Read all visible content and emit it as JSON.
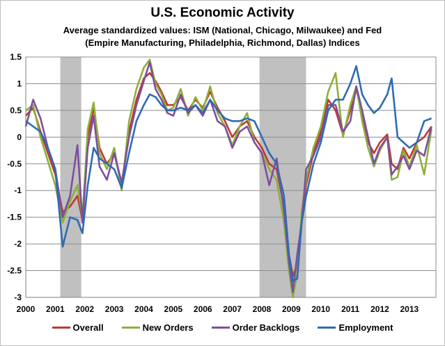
{
  "chart_data": {
    "type": "line",
    "title": "U.S. Economic Activity",
    "subtitle_line1": "Average standardized values: ISM (National, Chicago, Milwaukee) and Fed",
    "subtitle_line2": "(Empire Manufacturing, Philadelphia, Richmond, Dallas) Indices",
    "xlabel": "",
    "ylabel": "",
    "xlim": [
      2000,
      2013.9
    ],
    "ylim": [
      -3,
      1.5
    ],
    "x_ticks": [
      2000,
      2001,
      2002,
      2003,
      2004,
      2005,
      2006,
      2007,
      2008,
      2009,
      2010,
      2011,
      2012,
      2013
    ],
    "x_tick_labels": [
      "2000",
      "2001",
      "2002",
      "2003",
      "2004",
      "2005",
      "2006",
      "2007",
      "2008",
      "2009",
      "2010",
      "2011",
      "2012",
      "2013"
    ],
    "y_ticks": [
      1.5,
      1,
      0.5,
      0,
      -0.5,
      -1,
      -1.5,
      -2,
      -2.5,
      -3
    ],
    "y_tick_labels": [
      "1.5",
      "1",
      "0.5",
      "0",
      "-0.5",
      "-1",
      "-1.5",
      "-2",
      "-2.5",
      "-3"
    ],
    "grid": true,
    "legend_position": "bottom",
    "recessions": [
      [
        2001.17,
        2001.88
      ],
      [
        2007.92,
        2009.5
      ]
    ],
    "series": [
      {
        "name": "Overall",
        "color": "#c0392b",
        "x": [
          2000,
          2000.25,
          2000.5,
          2000.75,
          2001,
          2001.25,
          2001.5,
          2001.75,
          2001.92,
          2002.1,
          2002.3,
          2002.5,
          2002.75,
          2003,
          2003.25,
          2003.5,
          2003.75,
          2004,
          2004.2,
          2004.4,
          2004.6,
          2004.8,
          2005,
          2005.25,
          2005.5,
          2005.75,
          2006,
          2006.25,
          2006.5,
          2006.75,
          2007,
          2007.25,
          2007.5,
          2007.75,
          2008,
          2008.25,
          2008.5,
          2008.75,
          2008.92,
          2009.05,
          2009.2,
          2009.35,
          2009.5,
          2009.75,
          2010,
          2010.25,
          2010.5,
          2010.75,
          2011,
          2011.2,
          2011.4,
          2011.6,
          2011.8,
          2012,
          2012.25,
          2012.4,
          2012.6,
          2012.8,
          2013,
          2013.25,
          2013.5,
          2013.75
        ],
        "values": [
          0.4,
          0.55,
          0.1,
          -0.3,
          -0.7,
          -1.4,
          -1.3,
          -1.1,
          -1.55,
          0.0,
          0.55,
          -0.2,
          -0.5,
          -0.3,
          -0.9,
          0.1,
          0.7,
          1.1,
          1.2,
          1.05,
          0.85,
          0.6,
          0.6,
          0.75,
          0.5,
          0.7,
          0.55,
          0.85,
          0.55,
          0.3,
          0.0,
          0.2,
          0.3,
          0.0,
          -0.2,
          -0.5,
          -0.6,
          -1.3,
          -2.2,
          -2.6,
          -2.4,
          -1.5,
          -0.9,
          -0.3,
          0.1,
          0.7,
          0.5,
          0.05,
          0.5,
          0.9,
          0.4,
          -0.1,
          -0.3,
          -0.1,
          0.05,
          -0.5,
          -0.6,
          -0.2,
          -0.4,
          -0.1,
          0.0,
          0.2
        ]
      },
      {
        "name": "New Orders",
        "color": "#8db03a",
        "x": [
          2000,
          2000.25,
          2000.5,
          2000.75,
          2001,
          2001.25,
          2001.5,
          2001.75,
          2001.92,
          2002.1,
          2002.3,
          2002.5,
          2002.75,
          2003,
          2003.25,
          2003.5,
          2003.75,
          2004,
          2004.2,
          2004.4,
          2004.6,
          2004.8,
          2005,
          2005.25,
          2005.5,
          2005.75,
          2006,
          2006.25,
          2006.5,
          2006.75,
          2007,
          2007.25,
          2007.5,
          2007.75,
          2008,
          2008.25,
          2008.5,
          2008.75,
          2008.92,
          2009.05,
          2009.2,
          2009.35,
          2009.5,
          2009.75,
          2010,
          2010.25,
          2010.5,
          2010.75,
          2011,
          2011.2,
          2011.4,
          2011.6,
          2011.8,
          2012,
          2012.25,
          2012.4,
          2012.6,
          2012.8,
          2013,
          2013.25,
          2013.5,
          2013.75
        ],
        "values": [
          0.5,
          0.6,
          0.0,
          -0.45,
          -0.9,
          -1.6,
          -1.2,
          -0.9,
          -1.5,
          0.15,
          0.65,
          -0.3,
          -0.6,
          -0.2,
          -1.0,
          0.3,
          0.9,
          1.3,
          1.45,
          1.0,
          0.8,
          0.5,
          0.55,
          0.9,
          0.4,
          0.75,
          0.5,
          0.95,
          0.45,
          0.2,
          -0.15,
          0.2,
          0.45,
          -0.1,
          -0.3,
          -0.6,
          -0.8,
          -1.6,
          -2.5,
          -3.0,
          -2.55,
          -1.4,
          -0.8,
          -0.2,
          0.2,
          0.85,
          1.2,
          0.0,
          0.6,
          0.95,
          0.3,
          -0.2,
          -0.55,
          -0.25,
          0.0,
          -0.8,
          -0.75,
          -0.25,
          -0.55,
          -0.15,
          -0.7,
          0.15
        ]
      },
      {
        "name": "Order Backlogs",
        "color": "#7d4f9e",
        "x": [
          2000,
          2000.25,
          2000.5,
          2000.75,
          2001,
          2001.25,
          2001.5,
          2001.75,
          2001.92,
          2002.1,
          2002.3,
          2002.5,
          2002.75,
          2003,
          2003.25,
          2003.5,
          2003.75,
          2004,
          2004.2,
          2004.4,
          2004.6,
          2004.8,
          2005,
          2005.25,
          2005.5,
          2005.75,
          2006,
          2006.25,
          2006.5,
          2006.75,
          2007,
          2007.25,
          2007.5,
          2007.75,
          2008,
          2008.25,
          2008.5,
          2008.75,
          2008.92,
          2009.05,
          2009.2,
          2009.35,
          2009.5,
          2009.75,
          2010,
          2010.25,
          2010.5,
          2010.75,
          2011,
          2011.2,
          2011.4,
          2011.6,
          2011.8,
          2012,
          2012.25,
          2012.4,
          2012.6,
          2012.8,
          2013,
          2013.25,
          2013.5,
          2013.75
        ],
        "values": [
          0.2,
          0.7,
          0.35,
          -0.2,
          -0.6,
          -1.5,
          -1.1,
          -0.15,
          -1.6,
          -0.2,
          0.4,
          -0.55,
          -0.8,
          -0.3,
          -0.85,
          0.0,
          0.6,
          1.05,
          1.4,
          0.9,
          0.7,
          0.45,
          0.4,
          0.8,
          0.45,
          0.6,
          0.4,
          0.7,
          0.3,
          0.2,
          -0.2,
          0.1,
          0.2,
          -0.1,
          -0.3,
          -0.9,
          -0.4,
          -1.4,
          -2.35,
          -2.9,
          -2.2,
          -1.6,
          -0.6,
          -0.35,
          0.0,
          0.6,
          0.6,
          0.1,
          0.3,
          0.95,
          0.5,
          0.0,
          -0.5,
          -0.2,
          0.0,
          -0.7,
          -0.55,
          -0.35,
          -0.6,
          -0.25,
          -0.35,
          0.2
        ]
      },
      {
        "name": "Employment",
        "color": "#2e6bb2",
        "x": [
          2000,
          2000.25,
          2000.5,
          2000.75,
          2001,
          2001.25,
          2001.5,
          2001.75,
          2001.92,
          2002.1,
          2002.3,
          2002.5,
          2002.75,
          2003,
          2003.25,
          2003.5,
          2003.75,
          2004,
          2004.2,
          2004.4,
          2004.6,
          2004.8,
          2005,
          2005.25,
          2005.5,
          2005.75,
          2006,
          2006.25,
          2006.5,
          2006.75,
          2007,
          2007.25,
          2007.5,
          2007.75,
          2008,
          2008.25,
          2008.5,
          2008.75,
          2008.92,
          2009.05,
          2009.2,
          2009.35,
          2009.5,
          2009.75,
          2010,
          2010.25,
          2010.5,
          2010.75,
          2011,
          2011.2,
          2011.4,
          2011.6,
          2011.8,
          2012,
          2012.25,
          2012.4,
          2012.6,
          2012.8,
          2013,
          2013.25,
          2013.5,
          2013.75
        ],
        "values": [
          0.3,
          0.2,
          0.1,
          -0.2,
          -0.6,
          -2.05,
          -1.5,
          -1.55,
          -1.8,
          -0.9,
          -0.2,
          -0.4,
          -0.5,
          -0.6,
          -0.95,
          -0.3,
          0.3,
          0.6,
          0.8,
          0.75,
          0.6,
          0.5,
          0.5,
          0.55,
          0.5,
          0.6,
          0.45,
          0.7,
          0.5,
          0.35,
          0.3,
          0.3,
          0.35,
          0.3,
          0.0,
          -0.3,
          -0.5,
          -1.1,
          -2.2,
          -2.7,
          -2.65,
          -1.6,
          -1.1,
          -0.5,
          -0.1,
          0.5,
          0.7,
          0.7,
          1.0,
          1.33,
          0.8,
          0.6,
          0.45,
          0.55,
          0.8,
          1.1,
          0.0,
          -0.1,
          -0.2,
          -0.1,
          0.3,
          0.35
        ]
      }
    ]
  }
}
